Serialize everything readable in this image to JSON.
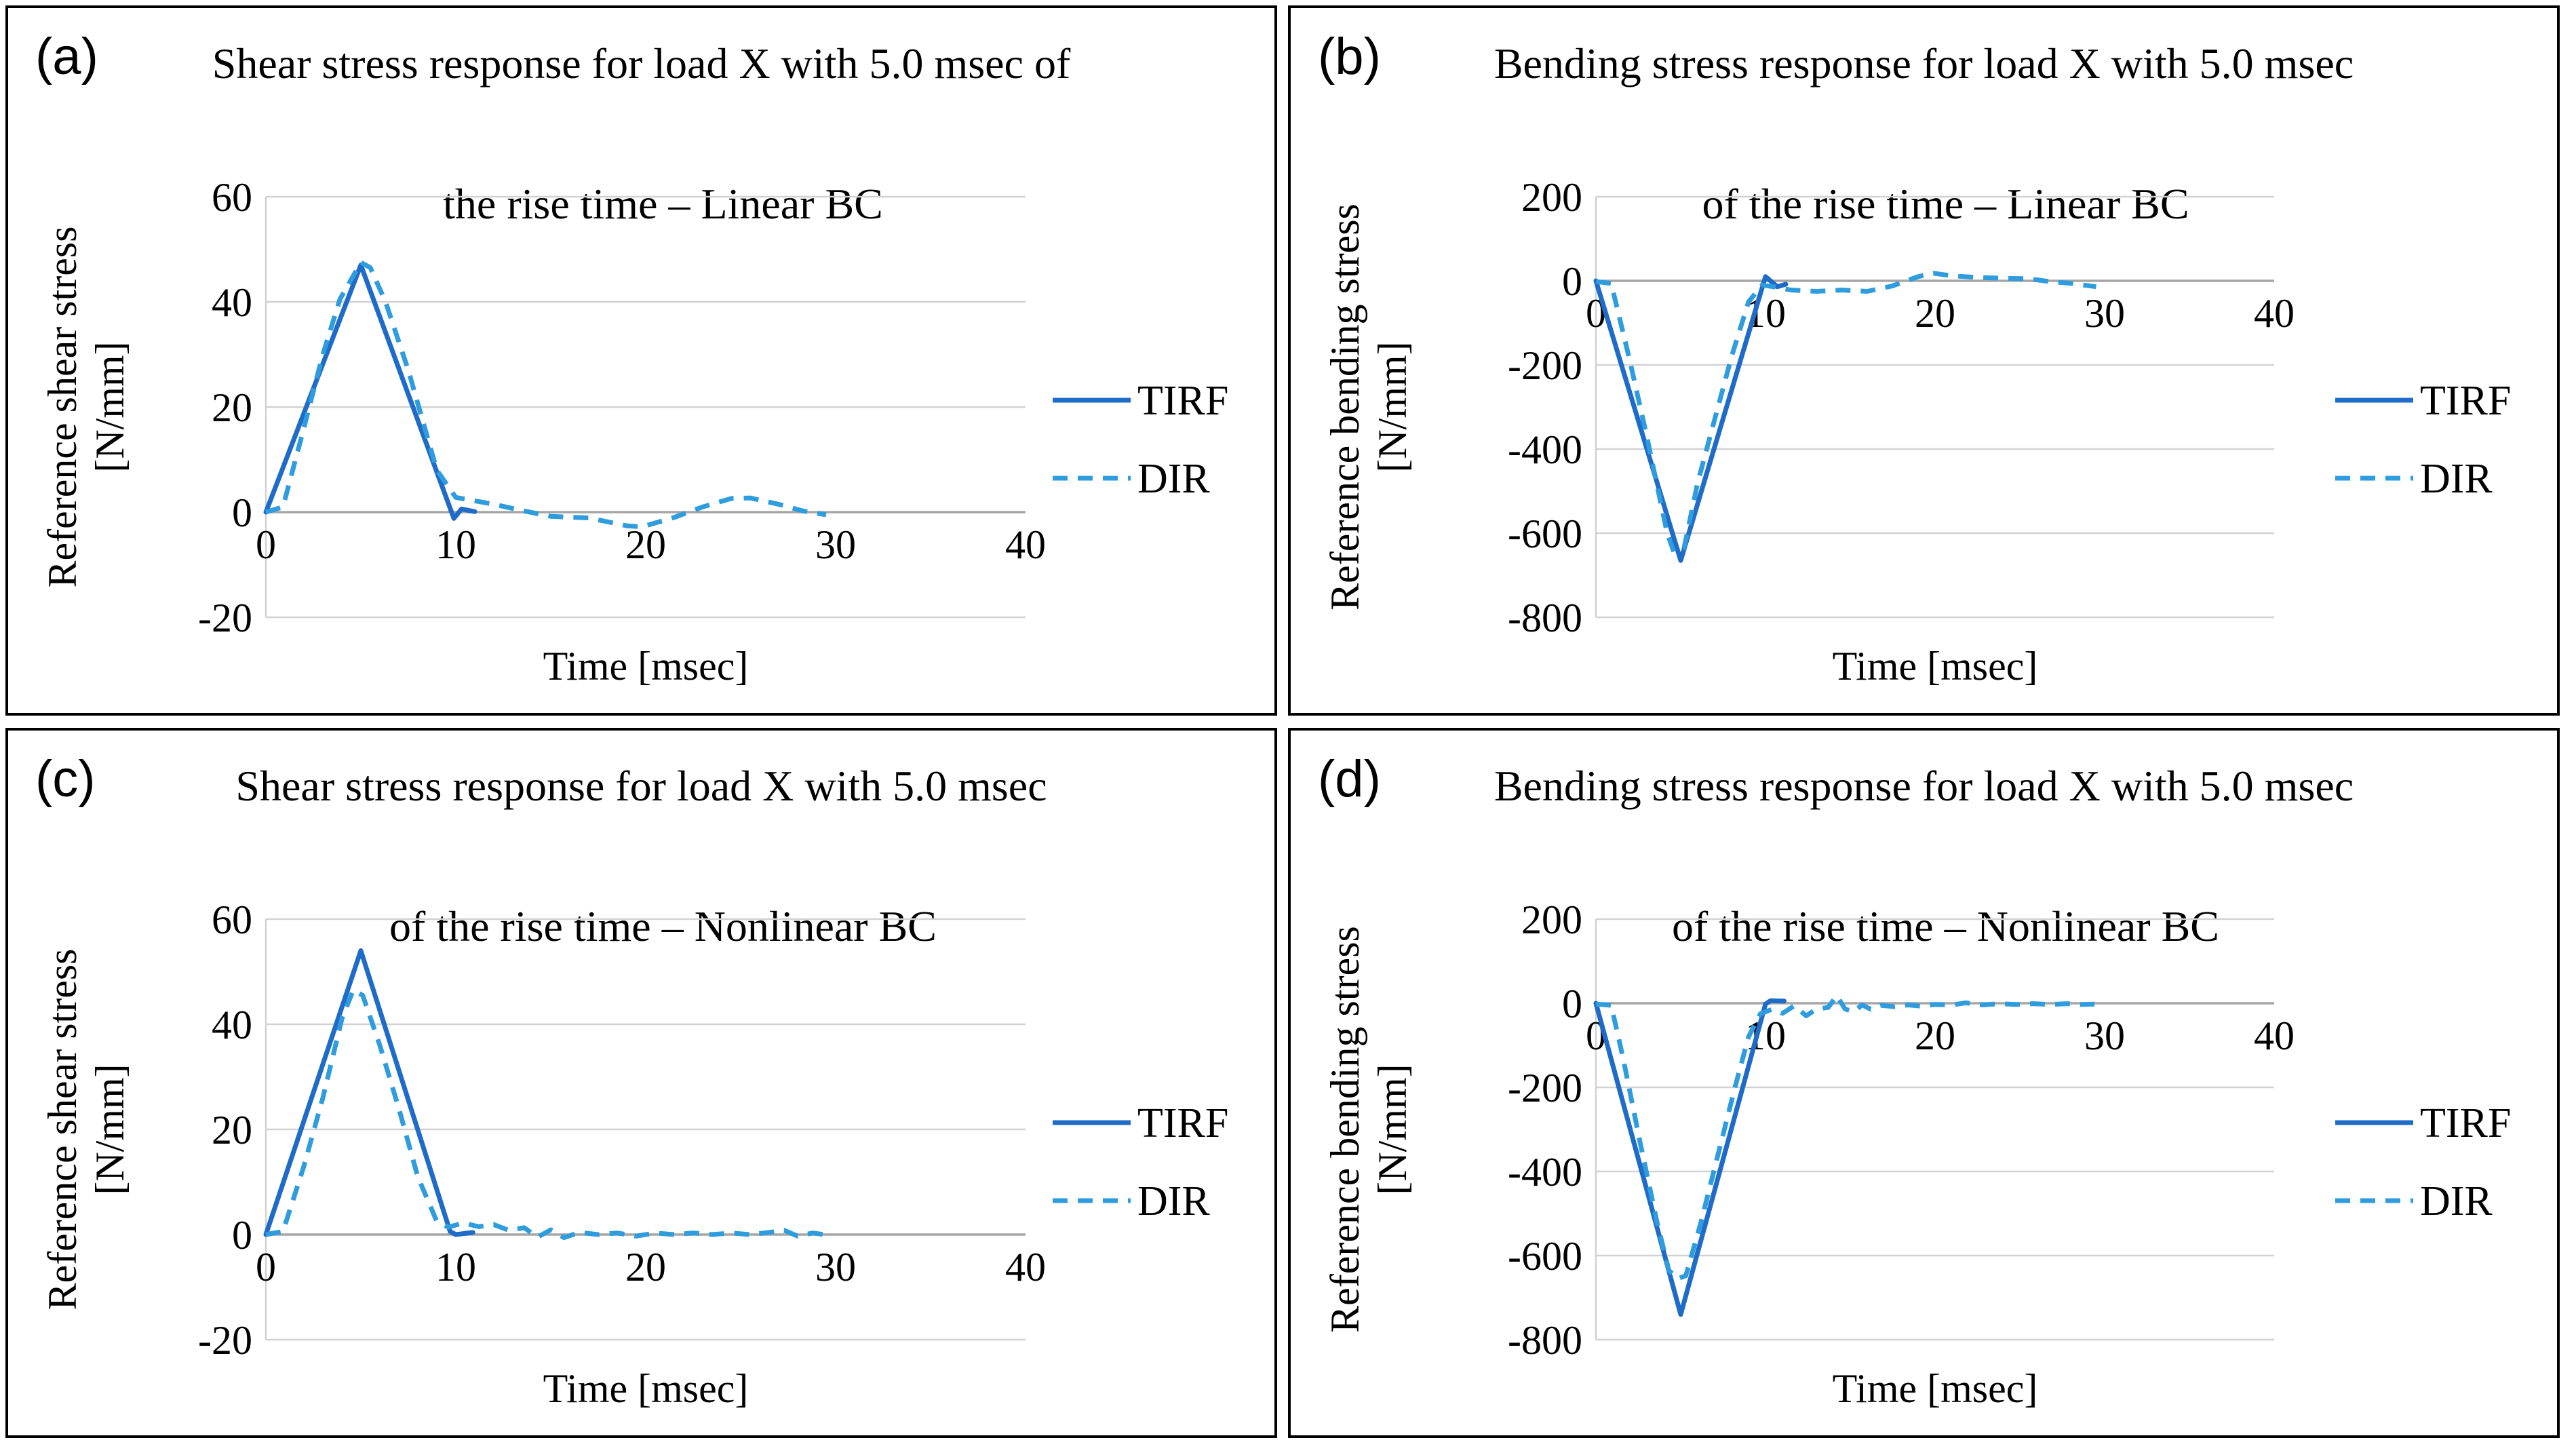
{
  "page_background": "#ffffff",
  "colors": {
    "tirf_line": "#1e6bc8",
    "dir_line": "#2f9cdd",
    "gridline": "#d2d2d2",
    "zero_axis": "#a6a6a6",
    "panel_border": "#000000",
    "text": "#000000"
  },
  "legend_labels": {
    "tirf": "TIRF",
    "dir": "DIR"
  },
  "chart_data": [
    {
      "panel_label": "(a)",
      "type": "line",
      "title_lines": [
        "Shear stress response for load X with 5.0 msec of",
        "the rise time – Linear BC"
      ],
      "ylabel_lines": [
        "Reference shear stress",
        "[N/mm]"
      ],
      "xlabel": "Time [msec]",
      "xlim": [
        0,
        40
      ],
      "ylim": [
        -20,
        60
      ],
      "x_ticks": [
        0,
        10,
        20,
        30,
        40
      ],
      "y_ticks": [
        60,
        40,
        20,
        0,
        -20
      ],
      "grid": true,
      "legend_position": "right",
      "legend": [
        "TIRF",
        "DIR"
      ],
      "series": [
        {
          "name": "TIRF",
          "style": "solid",
          "points": [
            [
              0,
              0
            ],
            [
              5,
              47
            ],
            [
              9.9,
              -1.2
            ],
            [
              10.3,
              0.6
            ],
            [
              11,
              0.1
            ]
          ]
        },
        {
          "name": "DIR",
          "style": "dashed",
          "points": [
            [
              0,
              0
            ],
            [
              0.9,
              1
            ],
            [
              2,
              16
            ],
            [
              3,
              30
            ],
            [
              3.9,
              40.5
            ],
            [
              5,
              47.5
            ],
            [
              5.5,
              46.5
            ],
            [
              6.3,
              40
            ],
            [
              7.5,
              27
            ],
            [
              9,
              8
            ],
            [
              10,
              2.8
            ],
            [
              10.6,
              2.4
            ],
            [
              12,
              1.5
            ],
            [
              13.5,
              0.3
            ],
            [
              15,
              -0.8
            ],
            [
              17,
              -1.1
            ],
            [
              19,
              -2.6
            ],
            [
              19.8,
              -2.8
            ],
            [
              21.5,
              -1
            ],
            [
              23,
              1
            ],
            [
              24.5,
              2.6
            ],
            [
              25.5,
              2.7
            ],
            [
              27,
              1.5
            ],
            [
              28.3,
              0.2
            ],
            [
              29.5,
              -0.5
            ]
          ]
        }
      ]
    },
    {
      "panel_label": "(b)",
      "type": "line",
      "title_lines": [
        "Bending stress response for load X with 5.0 msec",
        "of the rise time – Linear BC"
      ],
      "ylabel_lines": [
        "Reference bending stress",
        "[N/mm]"
      ],
      "xlabel": "Time [msec]",
      "xlim": [
        0,
        40
      ],
      "ylim": [
        -800,
        200
      ],
      "x_ticks": [
        0,
        10,
        20,
        30,
        40
      ],
      "y_ticks": [
        200,
        0,
        -200,
        -400,
        -600,
        -800
      ],
      "grid": true,
      "legend_position": "right",
      "legend": [
        "TIRF",
        "DIR"
      ],
      "series": [
        {
          "name": "TIRF",
          "style": "solid",
          "points": [
            [
              0,
              0
            ],
            [
              5,
              -665
            ],
            [
              10,
              10
            ],
            [
              10.7,
              -14
            ],
            [
              11.2,
              -8
            ]
          ]
        },
        {
          "name": "DIR",
          "style": "dashed",
          "points": [
            [
              0,
              -2
            ],
            [
              0.9,
              -6
            ],
            [
              2,
              -190
            ],
            [
              3,
              -370
            ],
            [
              4.2,
              -600
            ],
            [
              4.6,
              -645
            ],
            [
              5.2,
              -635
            ],
            [
              6,
              -480
            ],
            [
              7,
              -330
            ],
            [
              8,
              -180
            ],
            [
              9,
              -50
            ],
            [
              9.8,
              -10
            ],
            [
              10.6,
              -15
            ],
            [
              11.5,
              -22
            ],
            [
              13,
              -25
            ],
            [
              14.5,
              -22
            ],
            [
              16,
              -25
            ],
            [
              17.5,
              -12
            ],
            [
              19,
              10
            ],
            [
              19.9,
              18
            ],
            [
              21,
              12
            ],
            [
              22.5,
              8
            ],
            [
              24,
              6
            ],
            [
              25.5,
              5
            ],
            [
              26.8,
              -2
            ],
            [
              28,
              -6
            ],
            [
              29.5,
              -14
            ]
          ]
        }
      ]
    },
    {
      "panel_label": "(c)",
      "type": "line",
      "title_lines": [
        "Shear stress response for load X with 5.0 msec",
        "of the rise time – Nonlinear BC"
      ],
      "ylabel_lines": [
        "Reference shear stress",
        "[N/mm]"
      ],
      "xlabel": "Time [msec]",
      "xlim": [
        0,
        40
      ],
      "ylim": [
        -20,
        60
      ],
      "x_ticks": [
        0,
        10,
        20,
        30,
        40
      ],
      "y_ticks": [
        60,
        40,
        20,
        0,
        -20
      ],
      "grid": true,
      "legend_position": "right",
      "legend": [
        "TIRF",
        "DIR"
      ],
      "series": [
        {
          "name": "TIRF",
          "style": "solid",
          "points": [
            [
              0,
              0
            ],
            [
              5,
              54
            ],
            [
              9.7,
              0.6
            ],
            [
              10,
              0
            ],
            [
              10.9,
              0.4
            ]
          ]
        },
        {
          "name": "DIR",
          "style": "dashed",
          "points": [
            [
              0,
              0
            ],
            [
              0.9,
              0.6
            ],
            [
              2,
              13
            ],
            [
              3,
              26
            ],
            [
              4,
              41
            ],
            [
              4.6,
              46.5
            ],
            [
              5.1,
              45.5
            ],
            [
              6,
              36
            ],
            [
              7,
              24
            ],
            [
              8,
              11
            ],
            [
              9,
              2.5
            ],
            [
              9.6,
              1.4
            ],
            [
              10.4,
              2.2
            ],
            [
              11.2,
              1.5
            ],
            [
              12,
              1.9
            ],
            [
              12.8,
              0.8
            ],
            [
              13.6,
              1.3
            ],
            [
              14.3,
              -0.5
            ],
            [
              15,
              0.9
            ],
            [
              15.7,
              -0.6
            ],
            [
              16.5,
              0.4
            ],
            [
              17.5,
              0
            ],
            [
              18.5,
              0.3
            ],
            [
              19.5,
              -0.3
            ],
            [
              20.5,
              0.3
            ],
            [
              21.5,
              0
            ],
            [
              22.5,
              0.3
            ],
            [
              23.5,
              0
            ],
            [
              24.5,
              0.3
            ],
            [
              25.5,
              0
            ],
            [
              26.5,
              0.4
            ],
            [
              27.3,
              0.8
            ],
            [
              28,
              -0.3
            ],
            [
              28.8,
              0.3
            ],
            [
              29.4,
              0
            ]
          ]
        }
      ]
    },
    {
      "panel_label": "(d)",
      "type": "line",
      "title_lines": [
        "Bending stress response for load X with 5.0 msec",
        "of the rise time – Nonlinear BC"
      ],
      "ylabel_lines": [
        "Reference bending stress",
        "[N/mm]"
      ],
      "xlabel": "Time [msec]",
      "xlim": [
        0,
        40
      ],
      "ylim": [
        -800,
        200
      ],
      "x_ticks": [
        0,
        10,
        20,
        30,
        40
      ],
      "y_ticks": [
        200,
        0,
        -200,
        -400,
        -600,
        -800
      ],
      "grid": true,
      "legend_position": "right",
      "legend": [
        "TIRF",
        "DIR"
      ],
      "series": [
        {
          "name": "TIRF",
          "style": "solid",
          "points": [
            [
              0,
              0
            ],
            [
              5,
              -740
            ],
            [
              10,
              -2
            ],
            [
              10.3,
              6
            ],
            [
              11.1,
              5
            ]
          ]
        },
        {
          "name": "DIR",
          "style": "dashed",
          "points": [
            [
              0,
              -2
            ],
            [
              0.9,
              -5
            ],
            [
              1.6,
              -130
            ],
            [
              2.6,
              -330
            ],
            [
              3.6,
              -520
            ],
            [
              4.3,
              -635
            ],
            [
              4.8,
              -655
            ],
            [
              5.3,
              -648
            ],
            [
              6.2,
              -520
            ],
            [
              7.2,
              -360
            ],
            [
              8.2,
              -200
            ],
            [
              9,
              -80
            ],
            [
              9.7,
              -25
            ],
            [
              10.4,
              -14
            ],
            [
              11,
              -24
            ],
            [
              11.7,
              -6
            ],
            [
              12.4,
              -30
            ],
            [
              13,
              -14
            ],
            [
              13.7,
              -10
            ],
            [
              14.2,
              18
            ],
            [
              14.7,
              -14
            ],
            [
              15.2,
              -20
            ],
            [
              15.7,
              -4
            ],
            [
              16.2,
              -14
            ],
            [
              16.8,
              -5
            ],
            [
              17.6,
              -8
            ],
            [
              18.4,
              -4
            ],
            [
              19.2,
              -7
            ],
            [
              20,
              -3
            ],
            [
              21,
              -4
            ],
            [
              21.8,
              1
            ],
            [
              22.8,
              -4
            ],
            [
              23.8,
              -1
            ],
            [
              24.8,
              -3
            ],
            [
              25.8,
              -1
            ],
            [
              26.8,
              -3
            ],
            [
              27.8,
              -1
            ],
            [
              28.6,
              -3
            ],
            [
              29.4,
              -2
            ]
          ]
        }
      ]
    }
  ]
}
